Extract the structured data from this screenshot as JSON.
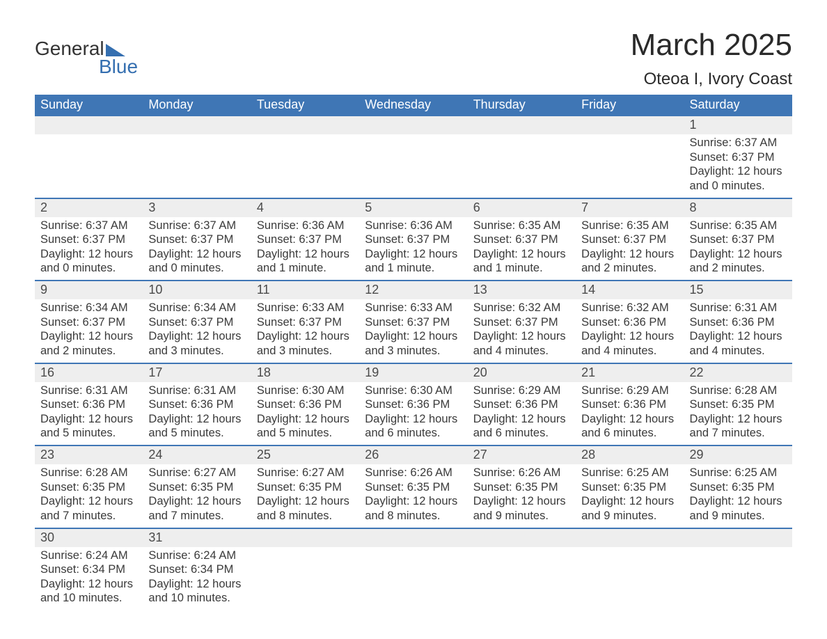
{
  "logo": {
    "word1": "General",
    "word2": "Blue"
  },
  "title": "March 2025",
  "location": "Oteoa I, Ivory Coast",
  "colors": {
    "header_bg": "#3f76b5",
    "header_text": "#ffffff",
    "row_border": "#3f76b5",
    "daynum_bg": "#eeeeee",
    "text": "#3a3a3a",
    "logo_accent": "#356fb0"
  },
  "columns": [
    "Sunday",
    "Monday",
    "Tuesday",
    "Wednesday",
    "Thursday",
    "Friday",
    "Saturday"
  ],
  "weeks": [
    [
      null,
      null,
      null,
      null,
      null,
      null,
      {
        "n": "1",
        "sr": "6:37 AM",
        "ss": "6:37 PM",
        "dl": "12 hours and 0 minutes."
      }
    ],
    [
      {
        "n": "2",
        "sr": "6:37 AM",
        "ss": "6:37 PM",
        "dl": "12 hours and 0 minutes."
      },
      {
        "n": "3",
        "sr": "6:37 AM",
        "ss": "6:37 PM",
        "dl": "12 hours and 0 minutes."
      },
      {
        "n": "4",
        "sr": "6:36 AM",
        "ss": "6:37 PM",
        "dl": "12 hours and 1 minute."
      },
      {
        "n": "5",
        "sr": "6:36 AM",
        "ss": "6:37 PM",
        "dl": "12 hours and 1 minute."
      },
      {
        "n": "6",
        "sr": "6:35 AM",
        "ss": "6:37 PM",
        "dl": "12 hours and 1 minute."
      },
      {
        "n": "7",
        "sr": "6:35 AM",
        "ss": "6:37 PM",
        "dl": "12 hours and 2 minutes."
      },
      {
        "n": "8",
        "sr": "6:35 AM",
        "ss": "6:37 PM",
        "dl": "12 hours and 2 minutes."
      }
    ],
    [
      {
        "n": "9",
        "sr": "6:34 AM",
        "ss": "6:37 PM",
        "dl": "12 hours and 2 minutes."
      },
      {
        "n": "10",
        "sr": "6:34 AM",
        "ss": "6:37 PM",
        "dl": "12 hours and 3 minutes."
      },
      {
        "n": "11",
        "sr": "6:33 AM",
        "ss": "6:37 PM",
        "dl": "12 hours and 3 minutes."
      },
      {
        "n": "12",
        "sr": "6:33 AM",
        "ss": "6:37 PM",
        "dl": "12 hours and 3 minutes."
      },
      {
        "n": "13",
        "sr": "6:32 AM",
        "ss": "6:37 PM",
        "dl": "12 hours and 4 minutes."
      },
      {
        "n": "14",
        "sr": "6:32 AM",
        "ss": "6:36 PM",
        "dl": "12 hours and 4 minutes."
      },
      {
        "n": "15",
        "sr": "6:31 AM",
        "ss": "6:36 PM",
        "dl": "12 hours and 4 minutes."
      }
    ],
    [
      {
        "n": "16",
        "sr": "6:31 AM",
        "ss": "6:36 PM",
        "dl": "12 hours and 5 minutes."
      },
      {
        "n": "17",
        "sr": "6:31 AM",
        "ss": "6:36 PM",
        "dl": "12 hours and 5 minutes."
      },
      {
        "n": "18",
        "sr": "6:30 AM",
        "ss": "6:36 PM",
        "dl": "12 hours and 5 minutes."
      },
      {
        "n": "19",
        "sr": "6:30 AM",
        "ss": "6:36 PM",
        "dl": "12 hours and 6 minutes."
      },
      {
        "n": "20",
        "sr": "6:29 AM",
        "ss": "6:36 PM",
        "dl": "12 hours and 6 minutes."
      },
      {
        "n": "21",
        "sr": "6:29 AM",
        "ss": "6:36 PM",
        "dl": "12 hours and 6 minutes."
      },
      {
        "n": "22",
        "sr": "6:28 AM",
        "ss": "6:35 PM",
        "dl": "12 hours and 7 minutes."
      }
    ],
    [
      {
        "n": "23",
        "sr": "6:28 AM",
        "ss": "6:35 PM",
        "dl": "12 hours and 7 minutes."
      },
      {
        "n": "24",
        "sr": "6:27 AM",
        "ss": "6:35 PM",
        "dl": "12 hours and 7 minutes."
      },
      {
        "n": "25",
        "sr": "6:27 AM",
        "ss": "6:35 PM",
        "dl": "12 hours and 8 minutes."
      },
      {
        "n": "26",
        "sr": "6:26 AM",
        "ss": "6:35 PM",
        "dl": "12 hours and 8 minutes."
      },
      {
        "n": "27",
        "sr": "6:26 AM",
        "ss": "6:35 PM",
        "dl": "12 hours and 9 minutes."
      },
      {
        "n": "28",
        "sr": "6:25 AM",
        "ss": "6:35 PM",
        "dl": "12 hours and 9 minutes."
      },
      {
        "n": "29",
        "sr": "6:25 AM",
        "ss": "6:35 PM",
        "dl": "12 hours and 9 minutes."
      }
    ],
    [
      {
        "n": "30",
        "sr": "6:24 AM",
        "ss": "6:34 PM",
        "dl": "12 hours and 10 minutes."
      },
      {
        "n": "31",
        "sr": "6:24 AM",
        "ss": "6:34 PM",
        "dl": "12 hours and 10 minutes."
      },
      null,
      null,
      null,
      null,
      null
    ]
  ],
  "labels": {
    "sunrise": "Sunrise: ",
    "sunset": "Sunset: ",
    "daylight": "Daylight: "
  }
}
